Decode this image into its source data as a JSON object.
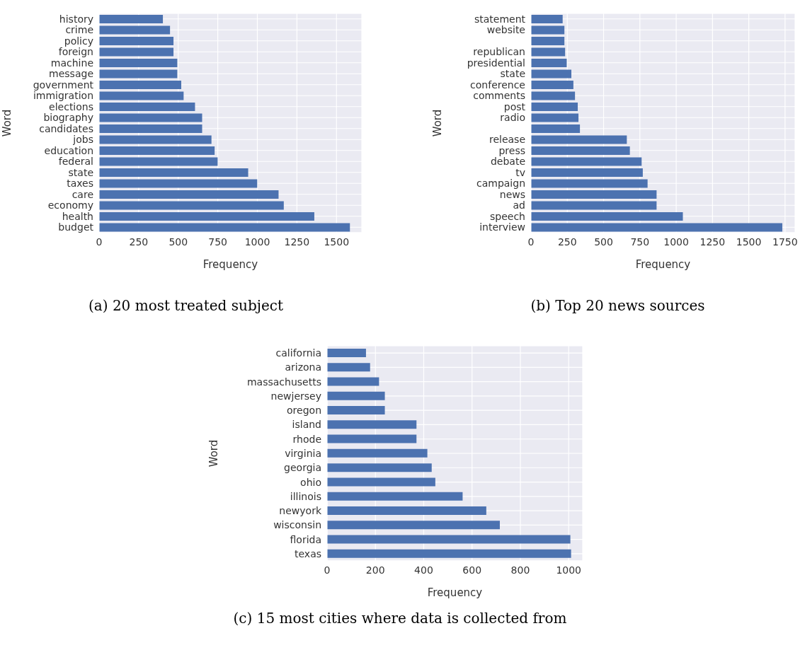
{
  "chart_data": [
    {
      "type": "bar",
      "orientation": "horizontal",
      "xlabel": "Frequency",
      "ylabel": "Word",
      "annotations": [
        "(a) 20 most treated subject"
      ],
      "color": "#4c72b0",
      "grid": true,
      "categories": [
        "history",
        "crime",
        "policy",
        "foreign",
        "machine",
        "message",
        "government",
        "immigration",
        "elections",
        "biography",
        "candidates",
        "jobs",
        "education",
        "federal",
        "state",
        "taxes",
        "care",
        "economy",
        "health",
        "budget"
      ],
      "values": [
        403,
        448,
        470,
        470,
        494,
        494,
        519,
        534,
        606,
        651,
        651,
        710,
        730,
        749,
        942,
        999,
        1134,
        1167,
        1360,
        1585
      ],
      "xlim": [
        0,
        1660
      ],
      "xticks": [
        0,
        250,
        500,
        750,
        1000,
        1250,
        1500
      ]
    },
    {
      "type": "bar",
      "orientation": "horizontal",
      "xlabel": "Frequency",
      "ylabel": "Word",
      "annotations": [
        "(b) Top 20 news sources"
      ],
      "color": "#4c72b0",
      "grid": true,
      "categories": [
        "statement",
        "website",
        null,
        "republican",
        "presidential",
        "state",
        "conference",
        "comments",
        "post",
        "radio",
        null,
        "release",
        "press",
        "debate",
        "tv",
        "campaign",
        "news",
        "ad",
        "speech",
        "interview"
      ],
      "values": [
        218,
        230,
        230,
        235,
        246,
        278,
        292,
        303,
        322,
        327,
        337,
        660,
        681,
        762,
        770,
        803,
        865,
        865,
        1046,
        1731
      ],
      "xlim": [
        0,
        1819
      ],
      "xticks": [
        0,
        250,
        500,
        750,
        1000,
        1250,
        1500,
        1750
      ]
    },
    {
      "type": "bar",
      "orientation": "horizontal",
      "xlabel": "Frequency",
      "ylabel": "Word",
      "annotations": [
        "(c) 15 most cities where data is collected from"
      ],
      "color": "#4c72b0",
      "grid": true,
      "categories": [
        "california",
        "arizona",
        "massachusetts",
        "newjersey",
        "oregon",
        "island",
        "rhode",
        "virginia",
        "georgia",
        "ohio",
        "illinois",
        "newyork",
        "wisconsin",
        "florida",
        "texas"
      ],
      "values": [
        161,
        178,
        215,
        239,
        239,
        370,
        370,
        415,
        433,
        448,
        561,
        659,
        715,
        1007,
        1010
      ],
      "xlim": [
        0,
        1058
      ],
      "xticks": [
        0,
        200,
        400,
        600,
        800,
        1000
      ]
    }
  ]
}
